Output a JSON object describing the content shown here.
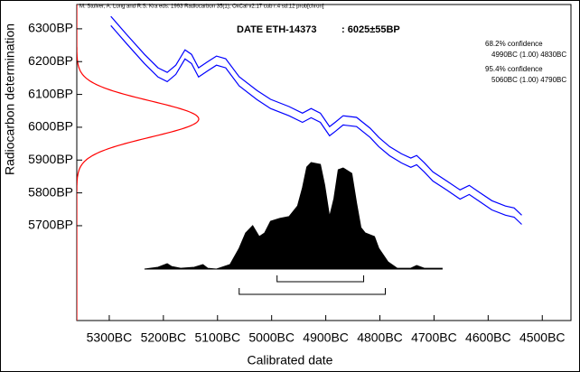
{
  "chart_data": {
    "type": "calibration",
    "header": "M. Stuiver, A. Long and R.S. Kra eds. 1993 Radiocarbon 35(1);  OxCal v2.17 cub r:4 sd:12 prob[chron]",
    "date_label": "DATE ETH-14373",
    "date_value_label": ": 6025±55BP",
    "bp_date": 6025,
    "bp_error": 55,
    "x_label": "Calibrated date",
    "y_label": "Radiocarbon determination",
    "xlim": [
      5360,
      4447
    ],
    "ylim": [
      5411,
      6374
    ],
    "xticks": [
      {
        "value": 5300,
        "label": "5300BC"
      },
      {
        "value": 5200,
        "label": "5200BC"
      },
      {
        "value": 5100,
        "label": "5100BC"
      },
      {
        "value": 5000,
        "label": "5000BC"
      },
      {
        "value": 4900,
        "label": "4900BC"
      },
      {
        "value": 4800,
        "label": "4800BC"
      },
      {
        "value": 4700,
        "label": "4700BC"
      },
      {
        "value": 4600,
        "label": "4600BC"
      },
      {
        "value": 4500,
        "label": "4500BC"
      }
    ],
    "yticks": [
      {
        "value": 6300,
        "label": "6300BP"
      },
      {
        "value": 6200,
        "label": "6200BP"
      },
      {
        "value": 6100,
        "label": "6100BP"
      },
      {
        "value": 6000,
        "label": "6000BP"
      },
      {
        "value": 5900,
        "label": "5900BP"
      },
      {
        "value": 5800,
        "label": "5800BP"
      },
      {
        "value": 5700,
        "label": "5700BP"
      }
    ],
    "x": [
      5297,
      5268,
      5235,
      5210,
      5193,
      5177,
      5160,
      5148,
      5135,
      5118,
      5102,
      5085,
      5060,
      5027,
      5002,
      4968,
      4943,
      4927,
      4910,
      4893,
      4882,
      4868,
      4843,
      4818,
      4802,
      4782,
      4760,
      4743,
      4732,
      4718,
      4702,
      4677,
      4652,
      4635,
      4618,
      4593,
      4568,
      4552,
      4538
    ],
    "series": [
      {
        "color": "#0000ff",
        "values": [
          6338,
          6283,
          6222,
          6181,
          6167,
          6189,
          6236,
          6222,
          6181,
          6200,
          6217,
          6209,
          6154,
          6112,
          6085,
          6063,
          6043,
          6057,
          6043,
          6002,
          6016,
          6035,
          6030,
          5997,
          5969,
          5941,
          5919,
          5906,
          5914,
          5892,
          5864,
          5837,
          5809,
          5823,
          5804,
          5776,
          5760,
          5754,
          5732
        ]
      },
      {
        "color": "#0000ff",
        "values": [
          6310,
          6255,
          6194,
          6153,
          6139,
          6161,
          6208,
          6194,
          6153,
          6172,
          6189,
          6181,
          6126,
          6084,
          6057,
          6035,
          6015,
          6029,
          6015,
          5974,
          5988,
          6007,
          6002,
          5969,
          5941,
          5913,
          5891,
          5878,
          5886,
          5864,
          5836,
          5809,
          5781,
          5795,
          5776,
          5748,
          5732,
          5726,
          5704
        ]
      }
    ],
    "gauss_color": "#ff0000",
    "probability": {
      "color": "#000000",
      "x": [
        5235,
        5210,
        5193,
        5185,
        5168,
        5143,
        5127,
        5118,
        5102,
        5077,
        5060,
        5048,
        5035,
        5023,
        5013,
        5002,
        4985,
        4968,
        4952,
        4943,
        4935,
        4927,
        4910,
        4902,
        4893,
        4885,
        4877,
        4868,
        4852,
        4843,
        4835,
        4827,
        4810,
        4802,
        4785,
        4768,
        4743,
        4732,
        4718,
        4685
      ],
      "values": [
        0,
        1.7,
        5,
        2.5,
        0.8,
        1.7,
        4.2,
        0.8,
        0,
        4.2,
        19.5,
        33.9,
        40.7,
        30.5,
        33.9,
        44.9,
        47.5,
        49.2,
        59.3,
        76.3,
        95.8,
        100,
        98.3,
        78.8,
        49.2,
        66.1,
        93.2,
        94.9,
        89.8,
        61.9,
        39,
        33.9,
        30.5,
        19.5,
        6.8,
        0.8,
        0.8,
        3.4,
        0.8,
        0.8
      ]
    },
    "ranges": [
      {
        "confidence": "68.2% confidence",
        "label": "4990BC (1.00) 4830BC",
        "from": 4990,
        "to": 4830
      },
      {
        "confidence": "95.4% confidence",
        "label": "5060BC (1.00) 4790BC",
        "from": 5060,
        "to": 4790
      }
    ]
  }
}
